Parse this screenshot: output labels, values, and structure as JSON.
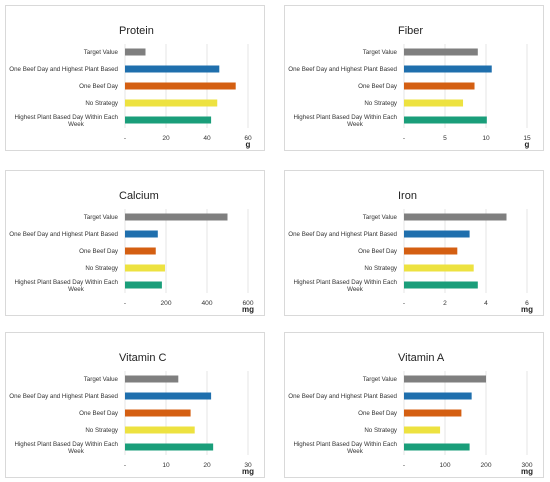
{
  "colors": {
    "target": "#7f7f7f",
    "one_beef_highest_plant": "#1f6fad",
    "one_beef": "#d45f12",
    "no_strategy": "#ede240",
    "highest_plant_week": "#1a9e7a"
  },
  "chart_data": [
    {
      "type": "bar",
      "orientation": "horizontal",
      "title": "Protein",
      "unit": "g",
      "categories": [
        "Target Value",
        "One Beef Day and Highest Plant Based",
        "One Beef Day",
        "No Strategy",
        "Highest Plant Based Day Within Each Week"
      ],
      "values": [
        10,
        46,
        54,
        45,
        42
      ],
      "xlim": [
        0,
        60
      ],
      "ticks": [
        0,
        20,
        40,
        60
      ],
      "tick_labels": [
        "-",
        "20",
        "40",
        "60"
      ],
      "grid": true
    },
    {
      "type": "bar",
      "orientation": "horizontal",
      "title": "Fiber",
      "unit": "g",
      "categories": [
        "Target Value",
        "One Beef Day and Highest Plant Based",
        "One Beef Day",
        "No Strategy",
        "Highest Plant Based Day Within Each Week"
      ],
      "values": [
        9,
        10.7,
        8.6,
        7.2,
        10.1
      ],
      "xlim": [
        0,
        15
      ],
      "ticks": [
        0,
        5,
        10,
        15
      ],
      "tick_labels": [
        "-",
        "5",
        "10",
        "15"
      ],
      "grid": true
    },
    {
      "type": "bar",
      "orientation": "horizontal",
      "title": "Calcium",
      "unit": "mg",
      "categories": [
        "Target Value",
        "One Beef Day and Highest Plant Based",
        "One Beef Day",
        "No Strategy",
        "Highest Plant Based Day Within Each Week"
      ],
      "values": [
        500,
        160,
        150,
        195,
        180
      ],
      "xlim": [
        0,
        600
      ],
      "ticks": [
        0,
        200,
        400,
        600
      ],
      "tick_labels": [
        "-",
        "200",
        "400",
        "600"
      ],
      "grid": true
    },
    {
      "type": "bar",
      "orientation": "horizontal",
      "title": "Iron",
      "unit": "mg",
      "categories": [
        "Target Value",
        "One Beef Day and Highest Plant Based",
        "One Beef Day",
        "No Strategy",
        "Highest Plant Based Day Within Each Week"
      ],
      "values": [
        5,
        3.2,
        2.6,
        3.4,
        3.6
      ],
      "xlim": [
        0,
        6
      ],
      "ticks": [
        0,
        2,
        4,
        6
      ],
      "tick_labels": [
        "-",
        "2",
        "4",
        "6"
      ],
      "grid": true
    },
    {
      "type": "bar",
      "orientation": "horizontal",
      "title": "Vitamin C",
      "unit": "mg",
      "categories": [
        "Target Value",
        "One Beef Day and Highest Plant Based",
        "One Beef Day",
        "No Strategy",
        "Highest Plant Based Day Within Each Week"
      ],
      "values": [
        13,
        21,
        16,
        17,
        21.5
      ],
      "xlim": [
        0,
        30
      ],
      "ticks": [
        0,
        10,
        20,
        30
      ],
      "tick_labels": [
        "-",
        "10",
        "20",
        "30"
      ],
      "grid": true
    },
    {
      "type": "bar",
      "orientation": "horizontal",
      "title": "Vitamin A",
      "unit": "mg",
      "categories": [
        "Target Value",
        "One Beef Day and Highest Plant Based",
        "One Beef Day",
        "No Strategy",
        "Highest Plant Based Day Within Each Week"
      ],
      "values": [
        200,
        165,
        140,
        88,
        160
      ],
      "xlim": [
        0,
        300
      ],
      "ticks": [
        0,
        100,
        200,
        300
      ],
      "tick_labels": [
        "-",
        "100",
        "200",
        "300"
      ],
      "grid": true
    }
  ]
}
